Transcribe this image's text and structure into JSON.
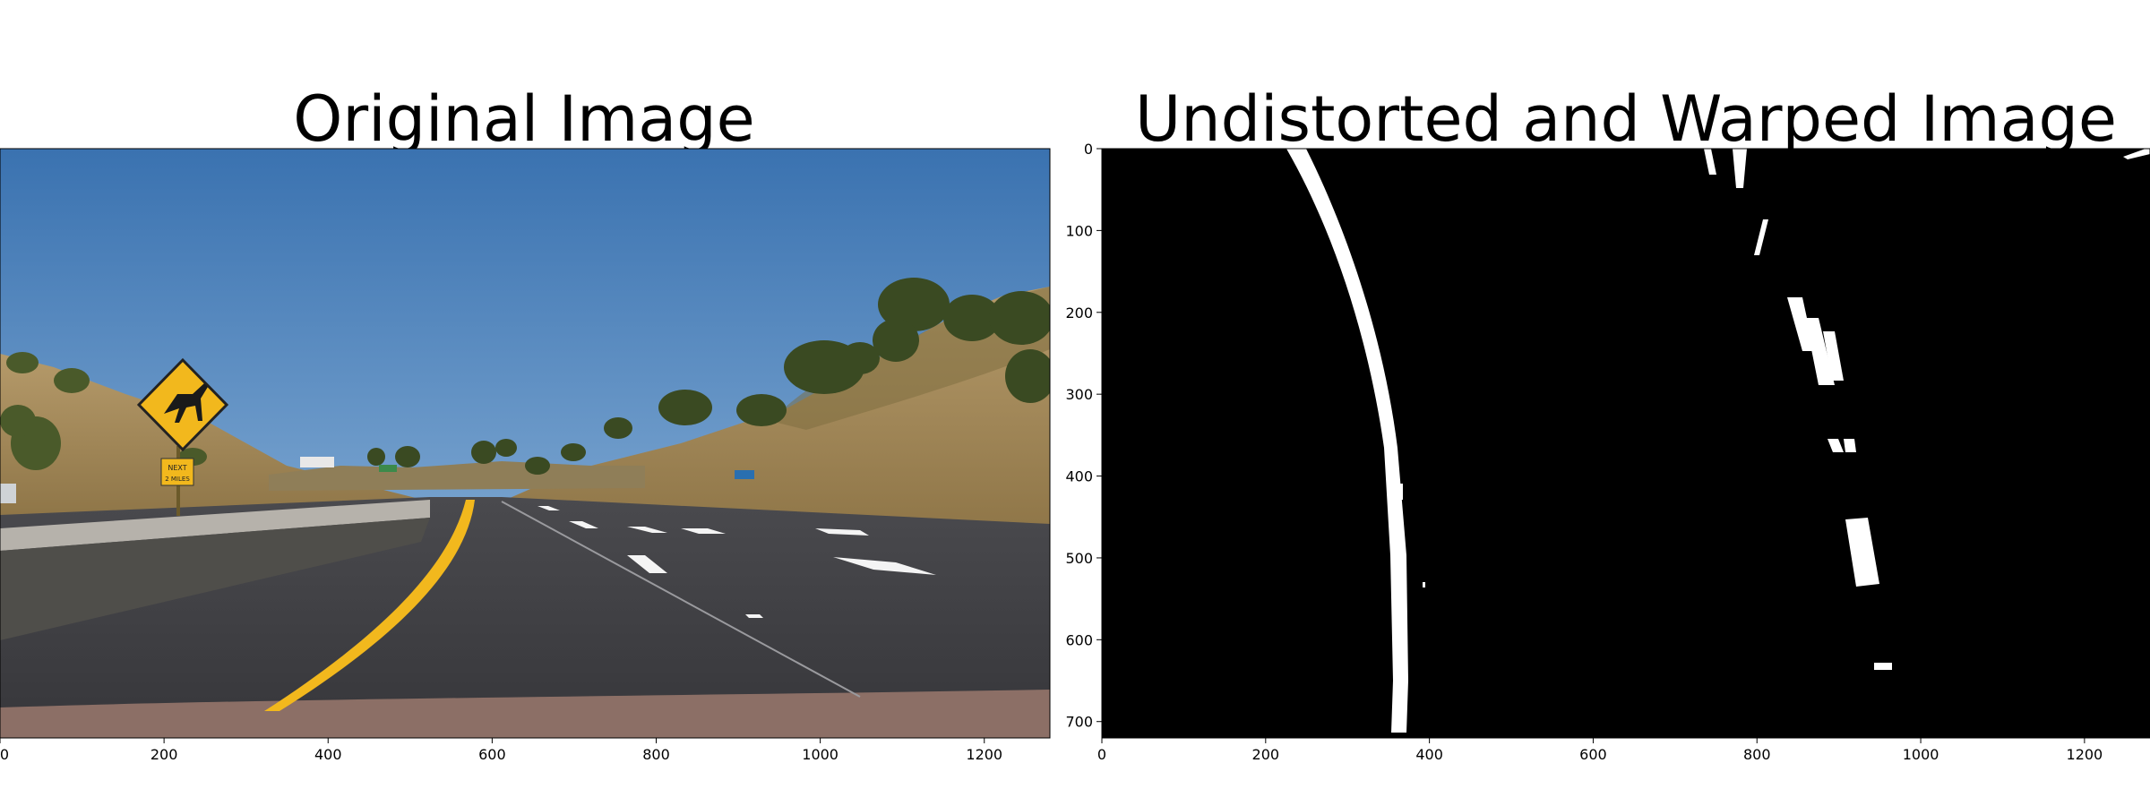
{
  "figure": {
    "left_title": "Original Image",
    "right_title": "Undistorted and Warped Image"
  },
  "left_axes": {
    "x_ticks": [
      "0",
      "200",
      "400",
      "600",
      "800",
      "1000",
      "1200"
    ],
    "x_tick_values": [
      0,
      200,
      400,
      600,
      800,
      1000,
      1200
    ],
    "x_range": [
      0,
      1280
    ]
  },
  "right_axes": {
    "x_ticks": [
      "0",
      "200",
      "400",
      "600",
      "800",
      "1000",
      "1200"
    ],
    "x_tick_values": [
      0,
      200,
      400,
      600,
      800,
      1000,
      1200
    ],
    "y_ticks": [
      "0",
      "100",
      "200",
      "300",
      "400",
      "500",
      "600",
      "700"
    ],
    "y_tick_values": [
      0,
      100,
      200,
      300,
      400,
      500,
      600,
      700
    ],
    "x_range": [
      0,
      1280
    ],
    "y_range": [
      0,
      720
    ]
  },
  "sign": {
    "plate_line1": "NEXT",
    "plate_line2": "2 MILES"
  },
  "colors": {
    "sky_top": "#3f78b4",
    "sky_bottom": "#a9c6df",
    "road": "#3d3d40",
    "lane_yellow": "#f2b81d",
    "warped_background": "#000000",
    "warped_lane": "#ffffff"
  }
}
